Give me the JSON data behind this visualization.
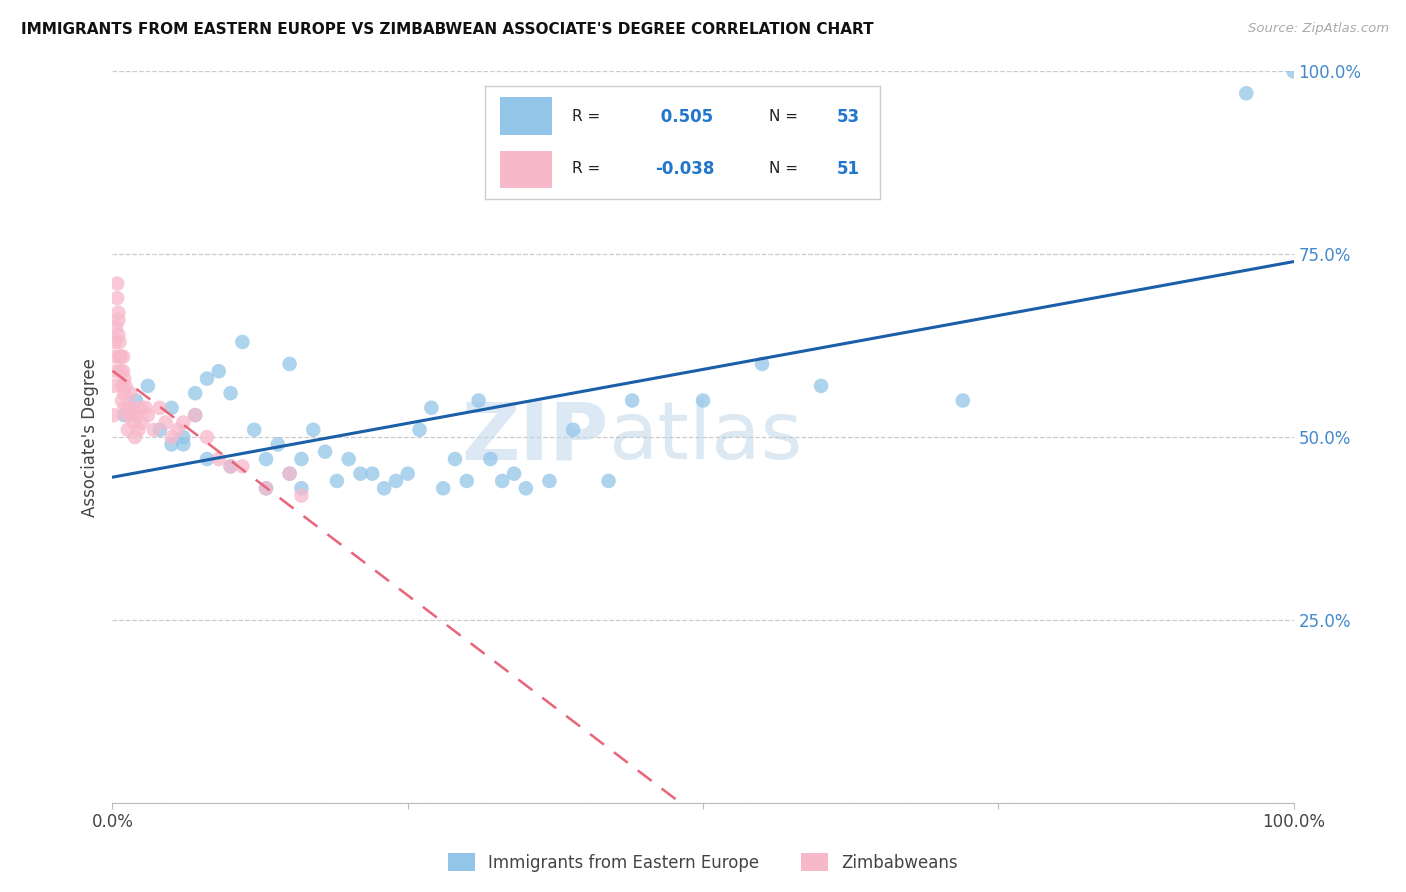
{
  "title": "IMMIGRANTS FROM EASTERN EUROPE VS ZIMBABWEAN ASSOCIATE'S DEGREE CORRELATION CHART",
  "source": "Source: ZipAtlas.com",
  "ylabel": "Associate's Degree",
  "legend_label1": "Immigrants from Eastern Europe",
  "legend_label2": "Zimbabweans",
  "R1": " 0.505",
  "N1": "53",
  "R2": "-0.038",
  "N2": "51",
  "color_blue": "#92c5e8",
  "color_pink": "#f7b8ca",
  "line_blue": "#1a5fa8",
  "line_pink": "#e8647a",
  "watermark_zip": "ZIP",
  "watermark_atlas": "atlas",
  "background": "#ffffff",
  "blue_x": [
    0.01,
    0.02,
    0.03,
    0.04,
    0.05,
    0.05,
    0.06,
    0.06,
    0.07,
    0.07,
    0.08,
    0.08,
    0.09,
    0.1,
    0.1,
    0.11,
    0.12,
    0.13,
    0.13,
    0.14,
    0.15,
    0.15,
    0.16,
    0.16,
    0.17,
    0.18,
    0.19,
    0.2,
    0.21,
    0.22,
    0.23,
    0.24,
    0.25,
    0.26,
    0.27,
    0.28,
    0.29,
    0.3,
    0.31,
    0.32,
    0.33,
    0.34,
    0.35,
    0.37,
    0.39,
    0.42,
    0.44,
    0.5,
    0.55,
    0.6,
    0.72,
    0.96,
    1.0
  ],
  "blue_y": [
    0.53,
    0.55,
    0.57,
    0.51,
    0.49,
    0.54,
    0.5,
    0.49,
    0.53,
    0.56,
    0.58,
    0.47,
    0.59,
    0.56,
    0.46,
    0.63,
    0.51,
    0.43,
    0.47,
    0.49,
    0.45,
    0.6,
    0.43,
    0.47,
    0.51,
    0.48,
    0.44,
    0.47,
    0.45,
    0.45,
    0.43,
    0.44,
    0.45,
    0.51,
    0.54,
    0.43,
    0.47,
    0.44,
    0.55,
    0.47,
    0.44,
    0.45,
    0.43,
    0.44,
    0.51,
    0.44,
    0.55,
    0.55,
    0.6,
    0.57,
    0.55,
    0.97,
    1.0
  ],
  "pink_x": [
    0.001,
    0.001,
    0.002,
    0.002,
    0.003,
    0.003,
    0.004,
    0.004,
    0.005,
    0.005,
    0.005,
    0.006,
    0.006,
    0.007,
    0.007,
    0.008,
    0.008,
    0.009,
    0.009,
    0.01,
    0.01,
    0.01,
    0.011,
    0.012,
    0.013,
    0.014,
    0.015,
    0.016,
    0.017,
    0.018,
    0.019,
    0.02,
    0.022,
    0.024,
    0.025,
    0.028,
    0.03,
    0.035,
    0.04,
    0.045,
    0.05,
    0.055,
    0.06,
    0.07,
    0.08,
    0.09,
    0.1,
    0.11,
    0.13,
    0.15,
    0.16
  ],
  "pink_y": [
    0.57,
    0.53,
    0.63,
    0.61,
    0.59,
    0.65,
    0.71,
    0.69,
    0.67,
    0.66,
    0.64,
    0.61,
    0.63,
    0.61,
    0.59,
    0.57,
    0.55,
    0.61,
    0.59,
    0.58,
    0.56,
    0.54,
    0.57,
    0.53,
    0.51,
    0.54,
    0.56,
    0.53,
    0.54,
    0.52,
    0.5,
    0.53,
    0.51,
    0.54,
    0.52,
    0.54,
    0.53,
    0.51,
    0.54,
    0.52,
    0.5,
    0.51,
    0.52,
    0.53,
    0.5,
    0.47,
    0.46,
    0.46,
    0.43,
    0.45,
    0.42
  ]
}
